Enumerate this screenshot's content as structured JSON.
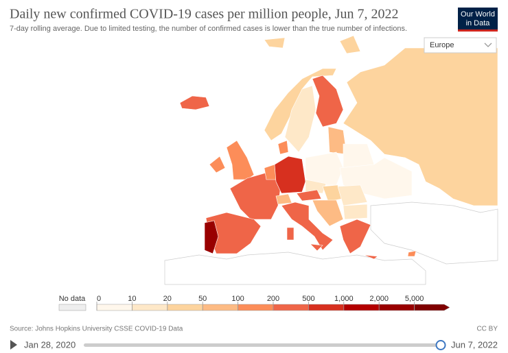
{
  "header": {
    "title": "Daily new confirmed COVID-19 cases per million people, Jun 7, 2022",
    "subtitle": "7-day rolling average. Due to limited testing, the number of confirmed cases is lower than the true number of infections.",
    "logo": [
      "Our World",
      "in Data"
    ]
  },
  "region_selector": "Europe",
  "legend": {
    "no_data": "No data",
    "no_data_color": "#eeeeee",
    "ticks": [
      0,
      10,
      20,
      50,
      100,
      200,
      500,
      {
        "value": 1000,
        "label": "1,000"
      },
      {
        "value": 2000,
        "label": "2,000"
      },
      {
        "value": 5000,
        "label": "5,000"
      }
    ],
    "colors": [
      "#fff7ec",
      "#fee8c8",
      "#fdd49e",
      "#fdbb84",
      "#fc8d59",
      "#ef6548",
      "#d7301f",
      "#b30000",
      "#990000",
      "#7f0000"
    ]
  },
  "footer": {
    "source": "Source: Johns Hopkins University CSSE COVID-19 Data",
    "license": "CC BY"
  },
  "timeline": {
    "start": "Jan 28, 2020",
    "end": "Jun 7, 2022"
  }
}
